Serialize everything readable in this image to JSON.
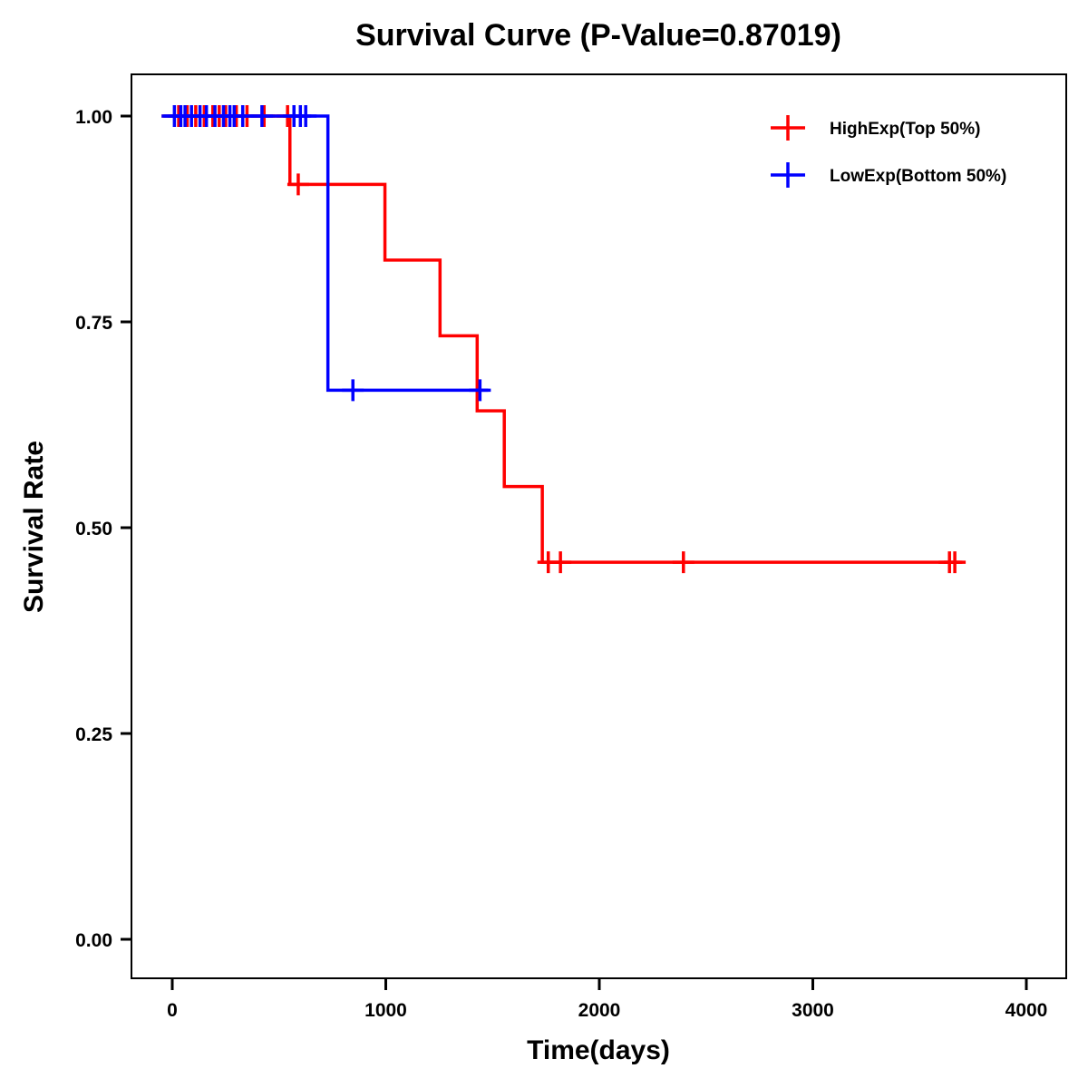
{
  "chart_data": {
    "type": "line",
    "subtype": "kaplan-meier",
    "title": "Survival Curve (P-Value=0.87019)",
    "xlabel": "Time(days)",
    "ylabel": "Survival Rate",
    "xlim": [
      -200,
      4150
    ],
    "ylim": [
      -0.05,
      1.05
    ],
    "xticks": [
      0,
      1000,
      2000,
      3000,
      4000
    ],
    "xtick_labels": [
      "0",
      "1000",
      "2000",
      "3000",
      "4000"
    ],
    "yticks": [
      0,
      0.25,
      0.5,
      0.75,
      1.0
    ],
    "ytick_labels": [
      "0.00",
      "0.25",
      "0.50",
      "0.75",
      "1.00"
    ],
    "grid": false,
    "legend_position": "top-right",
    "series": [
      {
        "name": "HighExp(Top 50%)",
        "color": "#ff0000",
        "steps": [
          {
            "time": 0,
            "survival": 1.0
          },
          {
            "time": 551,
            "survival": 0.917
          },
          {
            "time": 996,
            "survival": 0.825
          },
          {
            "time": 1254,
            "survival": 0.733
          },
          {
            "time": 1428,
            "survival": 0.642
          },
          {
            "time": 1555,
            "survival": 0.55
          },
          {
            "time": 1733,
            "survival": 0.458
          }
        ],
        "end_time": 3700,
        "censored": [
          {
            "time": 30,
            "survival": 1.0
          },
          {
            "time": 70,
            "survival": 1.0
          },
          {
            "time": 110,
            "survival": 1.0
          },
          {
            "time": 150,
            "survival": 1.0
          },
          {
            "time": 190,
            "survival": 1.0
          },
          {
            "time": 220,
            "survival": 1.0
          },
          {
            "time": 250,
            "survival": 1.0
          },
          {
            "time": 300,
            "survival": 1.0
          },
          {
            "time": 350,
            "survival": 1.0
          },
          {
            "time": 430,
            "survival": 1.0
          },
          {
            "time": 540,
            "survival": 1.0
          },
          {
            "time": 590,
            "survival": 0.917
          },
          {
            "time": 1761,
            "survival": 0.458
          },
          {
            "time": 1818,
            "survival": 0.458
          },
          {
            "time": 2394,
            "survival": 0.458
          },
          {
            "time": 3640,
            "survival": 0.458
          },
          {
            "time": 3665,
            "survival": 0.458
          }
        ]
      },
      {
        "name": "LowExp(Bottom 50%)",
        "color": "#0000ff",
        "steps": [
          {
            "time": 0,
            "survival": 1.0
          },
          {
            "time": 729,
            "survival": 0.667
          }
        ],
        "end_time": 1480,
        "censored": [
          {
            "time": 10,
            "survival": 1.0
          },
          {
            "time": 40,
            "survival": 1.0
          },
          {
            "time": 60,
            "survival": 1.0
          },
          {
            "time": 90,
            "survival": 1.0
          },
          {
            "time": 130,
            "survival": 1.0
          },
          {
            "time": 160,
            "survival": 1.0
          },
          {
            "time": 200,
            "survival": 1.0
          },
          {
            "time": 240,
            "survival": 1.0
          },
          {
            "time": 270,
            "survival": 1.0
          },
          {
            "time": 290,
            "survival": 1.0
          },
          {
            "time": 330,
            "survival": 1.0
          },
          {
            "time": 420,
            "survival": 1.0
          },
          {
            "time": 570,
            "survival": 1.0
          },
          {
            "time": 600,
            "survival": 1.0
          },
          {
            "time": 625,
            "survival": 1.0
          },
          {
            "time": 846,
            "survival": 0.667
          },
          {
            "time": 1441,
            "survival": 0.667
          }
        ]
      }
    ]
  }
}
